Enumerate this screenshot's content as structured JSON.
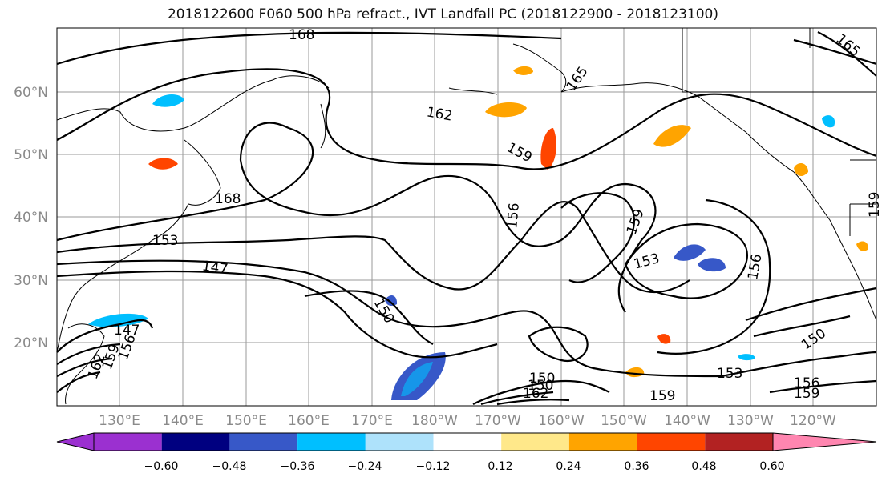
{
  "title": "2018122600 F060 500 hPa refract., IVT Landfall PC (2018122900 - 2018123100)",
  "map": {
    "lat_labels": [
      "60°N",
      "50°N",
      "40°N",
      "30°N",
      "20°N"
    ],
    "lon_labels": [
      "130°E",
      "140°E",
      "150°E",
      "160°E",
      "170°E",
      "180°W",
      "170°W",
      "160°W",
      "150°W",
      "140°W",
      "130°W",
      "120°W"
    ],
    "contour_labels": [
      "168",
      "165",
      "162",
      "159",
      "168",
      "156",
      "159",
      "153",
      "156",
      "153",
      "147",
      "150",
      "147",
      "150",
      "156",
      "159",
      "162",
      "150",
      "150",
      "162",
      "153",
      "156",
      "159",
      "159",
      "165",
      "159"
    ]
  },
  "colorbar": {
    "colors": [
      "#9b30d0",
      "#000080",
      "#3758c8",
      "#00bfff",
      "#aee2fb",
      "#ffffff",
      "#ffe88a",
      "#ffa400",
      "#ff4500",
      "#b22222",
      "#ff86b0"
    ],
    "ticks": [
      "−0.60",
      "−0.48",
      "−0.36",
      "−0.24",
      "−0.12",
      "0.12",
      "0.24",
      "0.36",
      "0.48",
      "0.60"
    ]
  }
}
